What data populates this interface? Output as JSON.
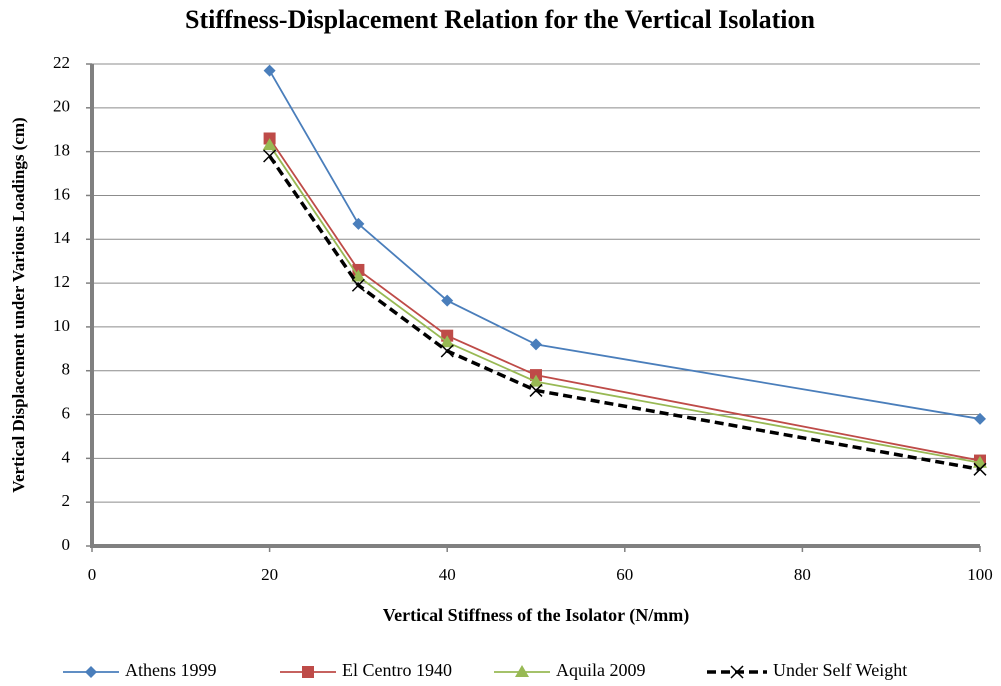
{
  "chart_data": {
    "type": "line",
    "title": "Stiffness-Displacement Relation for the Vertical Isolation",
    "x_label": "Vertical Stiffness of the Isolator (N/mm)",
    "y_label": "Vertical Displacement under Various Loadings (cm)",
    "x": [
      20,
      30,
      40,
      50,
      100
    ],
    "series": [
      {
        "name": "Athens 1999",
        "color": "#4a7ebb",
        "marker": "diamond",
        "dashed": false,
        "values": [
          21.7,
          14.7,
          11.2,
          9.2,
          5.8
        ]
      },
      {
        "name": "El Centro 1940",
        "color": "#be4b48",
        "marker": "square",
        "dashed": false,
        "values": [
          18.6,
          12.6,
          9.6,
          7.8,
          3.9
        ]
      },
      {
        "name": "Aquila 2009",
        "color": "#98b954",
        "marker": "triangle",
        "dashed": false,
        "values": [
          18.3,
          12.3,
          9.3,
          7.5,
          3.8
        ]
      },
      {
        "name": "Under Self Weight",
        "color": "#000000",
        "marker": "x",
        "dashed": true,
        "values": [
          17.8,
          11.9,
          8.9,
          7.1,
          3.5
        ]
      }
    ],
    "xlim": [
      0,
      100
    ],
    "xticks": [
      0,
      20,
      40,
      60,
      80,
      100
    ],
    "ylim": [
      0,
      22
    ],
    "yticks": [
      0,
      2,
      4,
      6,
      8,
      10,
      12,
      14,
      16,
      18,
      20,
      22
    ],
    "grid": true,
    "legend": "bottom"
  }
}
